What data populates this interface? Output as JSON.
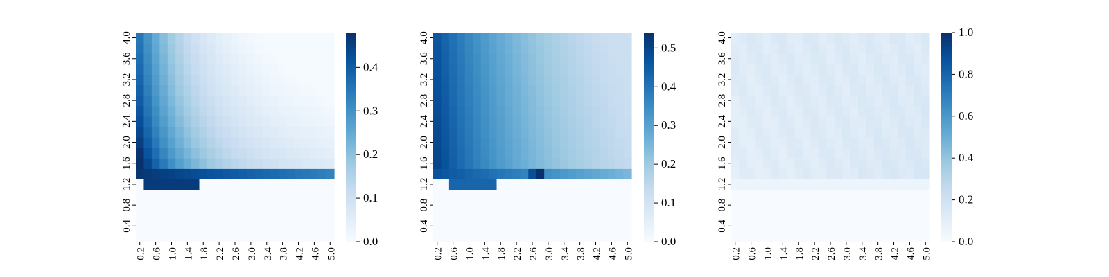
{
  "chart_data": [
    {
      "type": "heatmap",
      "x_ticks": [
        "0.2",
        "0.6",
        "1.0",
        "1.4",
        "1.8",
        "2.2",
        "2.6",
        "3.0",
        "3.4",
        "3.8",
        "4.2",
        "4.6",
        "5.0"
      ],
      "y_ticks": [
        "0.4",
        "0.8",
        "1.2",
        "1.6",
        "2.0",
        "2.4",
        "2.8",
        "3.2",
        "3.6",
        "4.0"
      ],
      "x_range": [
        0.2,
        5.0
      ],
      "y_range": [
        0.2,
        4.0
      ],
      "colormap": "Blues",
      "colorbar": {
        "min": 0.0,
        "max": 0.48,
        "ticks": [
          "0.0",
          "0.1",
          "0.2",
          "0.3",
          "0.4"
        ]
      },
      "description_values": {
        "low_band_y_max": 1.2,
        "low_band_value": 0.0,
        "first_row_above_threshold_left": 0.47,
        "first_row_above_threshold_right": 0.33,
        "top_right_value": 0.0,
        "left_column_value": 0.35,
        "isolated_dark_strip": {
          "x_from": 0.6,
          "x_to": 1.6,
          "y": 1.2,
          "value": 0.46
        }
      }
    },
    {
      "type": "heatmap",
      "x_ticks": [
        "0.2",
        "0.6",
        "1.0",
        "1.4",
        "1.8",
        "2.2",
        "2.6",
        "3.0",
        "3.4",
        "3.8",
        "4.2",
        "4.6",
        "5.0"
      ],
      "y_ticks": [
        "0.4",
        "0.8",
        "1.2",
        "1.6",
        "2.0",
        "2.4",
        "2.8",
        "3.2",
        "3.6",
        "4.0"
      ],
      "x_range": [
        0.2,
        5.0
      ],
      "y_range": [
        0.2,
        4.0
      ],
      "colormap": "Blues",
      "colorbar": {
        "min": 0.0,
        "max": 0.54,
        "ticks": [
          "0.0",
          "0.1",
          "0.2",
          "0.3",
          "0.4",
          "0.5"
        ]
      },
      "description_values": {
        "low_band_y_max": 1.2,
        "low_band_value": 0.0,
        "left_column_value": 0.47,
        "right_column_value": 0.2,
        "bright_peak": {
          "x": 2.6,
          "y": 1.6,
          "value": 0.54
        },
        "isolated_dark_strip": {
          "x_from": 0.6,
          "x_to": 1.6,
          "y": 1.2,
          "value": 0.43
        }
      }
    },
    {
      "type": "heatmap",
      "x_ticks": [
        "0.2",
        "0.6",
        "1.0",
        "1.4",
        "1.8",
        "2.2",
        "2.6",
        "3.0",
        "3.4",
        "3.8",
        "4.2",
        "4.6",
        "5.0"
      ],
      "y_ticks": [
        "0.4",
        "0.8",
        "1.2",
        "1.6",
        "2.0",
        "2.4",
        "2.8",
        "3.2",
        "3.6",
        "4.0"
      ],
      "x_range": [
        0.2,
        5.0
      ],
      "y_range": [
        0.2,
        4.0
      ],
      "colormap": "Blues",
      "colorbar": {
        "min": 0.0,
        "max": 1.0,
        "ticks": [
          "0.0",
          "0.2",
          "0.4",
          "0.6",
          "0.8",
          "1.0"
        ]
      },
      "description_values": {
        "low_band_y_max": 1.2,
        "low_band_value": 0.0,
        "upper_region_value_range": [
          0.06,
          0.18
        ]
      }
    }
  ]
}
